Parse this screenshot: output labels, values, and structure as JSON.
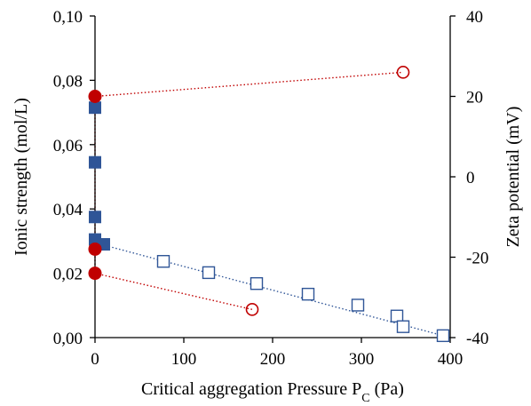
{
  "chart_data": {
    "type": "scatter",
    "xlabel": "Critical aggregation Pressure P",
    "xlabel_sub": "C",
    "xlabel_unit": " (Pa)",
    "ylabel": "Ionic strength (mol/L)",
    "y2label": "Zeta potential (mV)",
    "xlim": [
      0,
      400
    ],
    "ylim": [
      0,
      0.1
    ],
    "y2lim": [
      -40,
      40
    ],
    "x_ticks": [
      0,
      100,
      200,
      300,
      400
    ],
    "x_tick_labels": [
      "0",
      "100",
      "200",
      "300",
      "400"
    ],
    "y_ticks": [
      0,
      0.02,
      0.04,
      0.06,
      0.08,
      0.1
    ],
    "y_tick_labels": [
      "0,00",
      "0,02",
      "0,04",
      "0,06",
      "0,08",
      "0,10"
    ],
    "y2_ticks": [
      -40,
      -20,
      0,
      20,
      40
    ],
    "y2_tick_labels": [
      "-40",
      "-20",
      "0",
      "20",
      "40"
    ],
    "grid": false,
    "legend": "none",
    "series": [
      {
        "key": "ionic_filled",
        "axis": "left",
        "marker": "square-filled",
        "color": "#2f5597",
        "points": [
          [
            0,
            0.0715
          ],
          [
            0,
            0.0545
          ],
          [
            0,
            0.0375
          ],
          [
            0,
            0.0305
          ],
          [
            10,
            0.029
          ]
        ]
      },
      {
        "key": "ionic_open",
        "axis": "left",
        "marker": "square-open",
        "color": "#2f5597",
        "points": [
          [
            77,
            0.0237
          ],
          [
            128,
            0.0202
          ],
          [
            182,
            0.0168
          ],
          [
            240,
            0.0135
          ],
          [
            296,
            0.0101
          ],
          [
            340,
            0.0067
          ],
          [
            347,
            0.0034
          ],
          [
            392,
            0.0006
          ]
        ]
      },
      {
        "key": "zeta_filled",
        "axis": "right",
        "marker": "circle-filled",
        "color": "#c00000",
        "points": [
          [
            0,
            20
          ],
          [
            0,
            -18
          ],
          [
            0,
            -24
          ]
        ]
      },
      {
        "key": "zeta_open",
        "axis": "right",
        "marker": "circle-open",
        "color": "#c00000",
        "points": [
          [
            347,
            26
          ],
          [
            177,
            -33
          ]
        ]
      }
    ],
    "trendlines": [
      {
        "key": "trend_ionic",
        "axis": "left",
        "color": "#2f5597",
        "style": "dotted",
        "from": [
          0,
          0.0295
        ],
        "to": [
          392,
          0.0006
        ]
      },
      {
        "key": "trend_zeta_upper",
        "axis": "right",
        "color": "#c00000",
        "style": "dotted",
        "from": [
          0,
          20
        ],
        "to": [
          347,
          26
        ]
      },
      {
        "key": "trend_zeta_lower",
        "axis": "right",
        "color": "#c00000",
        "style": "dotted",
        "from": [
          0,
          -24
        ],
        "to": [
          177,
          -33
        ]
      },
      {
        "key": "trend_zeta_vertical",
        "axis": "right",
        "color": "#c00000",
        "style": "dotted",
        "from": [
          0,
          20
        ],
        "to": [
          0,
          -24
        ]
      }
    ]
  }
}
